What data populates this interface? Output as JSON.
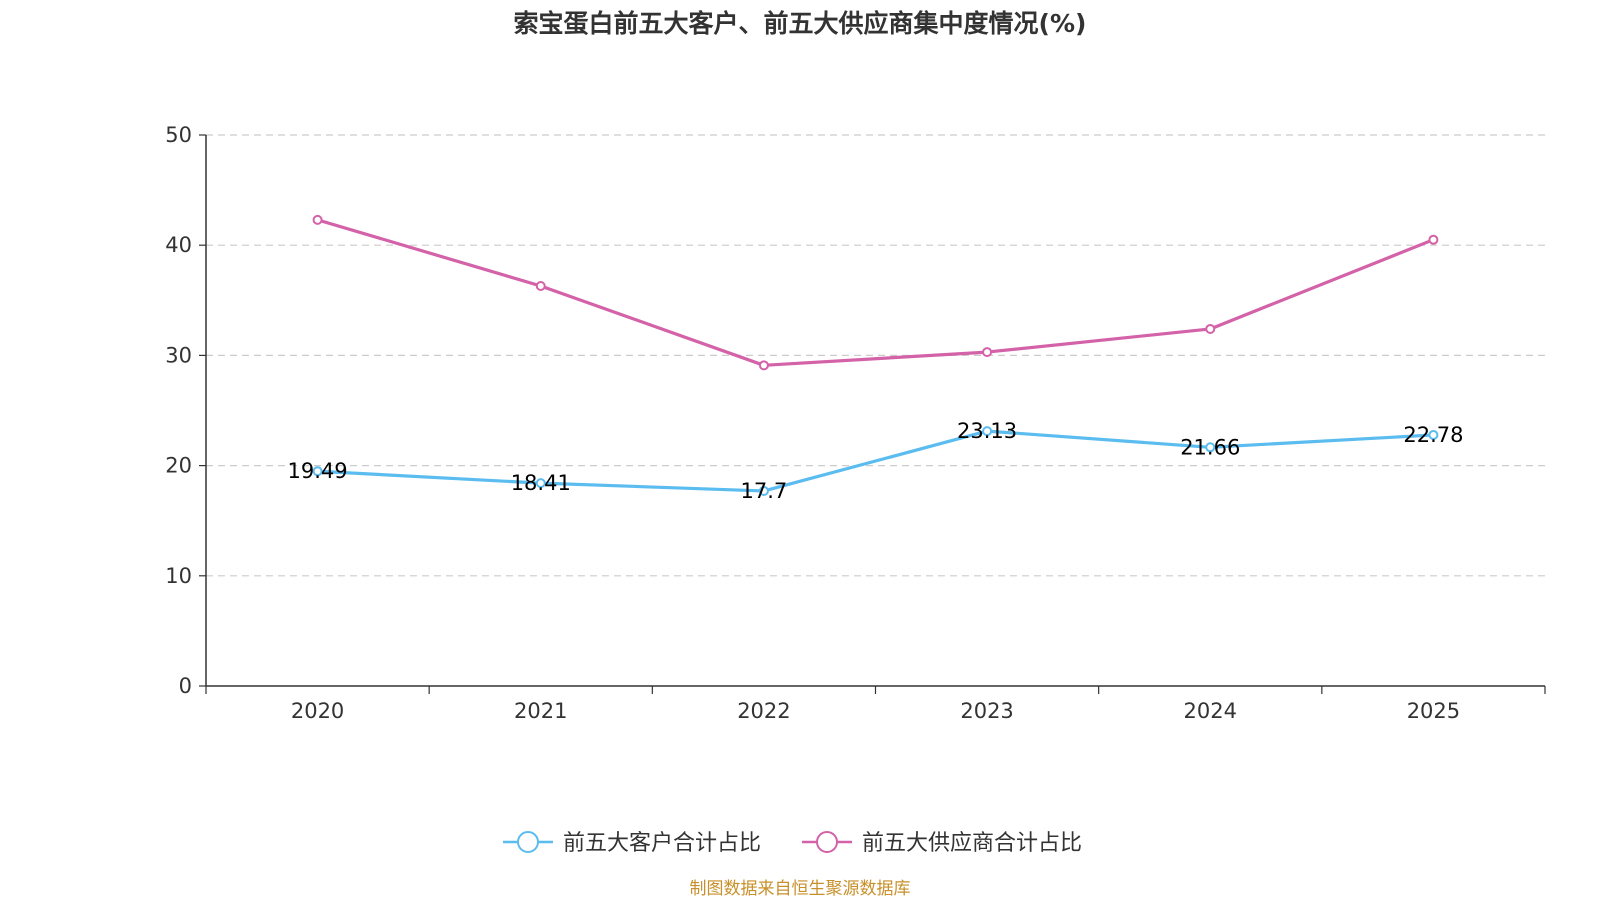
{
  "chart_data": {
    "type": "line",
    "title": "索宝蛋白前五大客户、前五大供应商集中度情况(%)",
    "categories": [
      "2020",
      "2021",
      "2022",
      "2023",
      "2024",
      "2025"
    ],
    "ylim": [
      0,
      50
    ],
    "yticks": [
      0,
      10,
      20,
      30,
      40,
      50
    ],
    "grid": true,
    "legend_position": "bottom-center",
    "series": [
      {
        "name": "前五大客户合计占比",
        "color": "#5bbcf0",
        "values": [
          19.49,
          18.41,
          17.7,
          23.13,
          21.66,
          22.78
        ],
        "show_labels": true
      },
      {
        "name": "前五大供应商合计占比",
        "color": "#d462a8",
        "values": [
          42.3,
          36.3,
          29.1,
          30.3,
          32.4,
          40.5
        ],
        "show_labels": false
      }
    ]
  },
  "source_text": "制图数据来自恒生聚源数据库",
  "source_color": "#c8902a"
}
